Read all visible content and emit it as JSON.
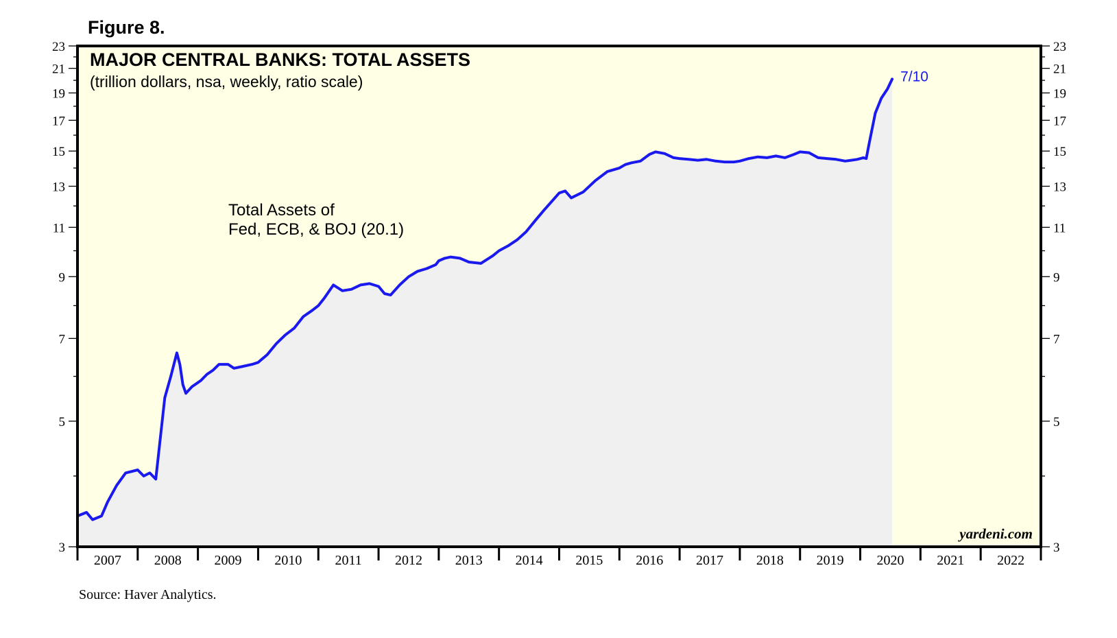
{
  "figure_label": "Figure 8.",
  "source": "Source: Haver Analytics.",
  "brand": "yardeni.com",
  "colors": {
    "plot_bg": "#ffffe6",
    "area_fill": "#f0f0f0",
    "line": "#1a1aee",
    "frame": "#000000"
  },
  "chart_data": {
    "type": "line",
    "title": "MAJOR CENTRAL BANKS: TOTAL ASSETS",
    "subtitle": "(trillion dollars, nsa, weekly, ratio scale)",
    "annotation_lines": [
      "Total Assets of",
      "Fed, ECB, & BOJ (20.1)"
    ],
    "end_label": "7/10",
    "yscale": "log",
    "ylim": [
      3,
      23
    ],
    "xlim": [
      2007.0,
      2023.0
    ],
    "y_ticks": [
      3,
      5,
      7,
      9,
      11,
      13,
      15,
      17,
      19,
      21,
      23
    ],
    "x_tick_labels": [
      "2007",
      "2008",
      "2009",
      "2010",
      "2011",
      "2012",
      "2013",
      "2014",
      "2015",
      "2016",
      "2017",
      "2018",
      "2019",
      "2020",
      "2021",
      "2022"
    ],
    "series": [
      {
        "name": "Total Assets of Fed, ECB, & BOJ",
        "x": [
          2007.0,
          2007.15,
          2007.25,
          2007.4,
          2007.5,
          2007.65,
          2007.8,
          2008.0,
          2008.1,
          2008.2,
          2008.3,
          2008.45,
          2008.55,
          2008.65,
          2008.7,
          2008.75,
          2008.8,
          2008.9,
          2008.95,
          2009.0,
          2009.05,
          2009.15,
          2009.25,
          2009.35,
          2009.5,
          2009.6,
          2009.75,
          2009.9,
          2010.0,
          2010.15,
          2010.3,
          2010.45,
          2010.6,
          2010.75,
          2010.9,
          2011.0,
          2011.1,
          2011.25,
          2011.4,
          2011.55,
          2011.7,
          2011.85,
          2012.0,
          2012.1,
          2012.2,
          2012.35,
          2012.5,
          2012.65,
          2012.8,
          2012.95,
          2013.0,
          2013.1,
          2013.2,
          2013.35,
          2013.5,
          2013.7,
          2013.9,
          2014.0,
          2014.15,
          2014.3,
          2014.45,
          2014.6,
          2014.75,
          2014.9,
          2015.0,
          2015.1,
          2015.2,
          2015.4,
          2015.6,
          2015.8,
          2016.0,
          2016.1,
          2016.2,
          2016.35,
          2016.5,
          2016.6,
          2016.75,
          2016.9,
          2017.0,
          2017.15,
          2017.3,
          2017.45,
          2017.6,
          2017.75,
          2017.9,
          2018.0,
          2018.15,
          2018.3,
          2018.45,
          2018.6,
          2018.75,
          2018.9,
          2019.0,
          2019.15,
          2019.3,
          2019.45,
          2019.6,
          2019.75,
          2019.85,
          2019.95,
          2020.05,
          2020.1,
          2020.15,
          2020.25,
          2020.35,
          2020.45,
          2020.53
        ],
        "values": [
          3.4,
          3.45,
          3.35,
          3.4,
          3.6,
          3.85,
          4.05,
          4.1,
          4.0,
          4.05,
          3.95,
          5.5,
          6.0,
          6.6,
          6.3,
          5.8,
          5.6,
          5.75,
          5.8,
          5.85,
          5.9,
          6.05,
          6.15,
          6.3,
          6.3,
          6.2,
          6.25,
          6.3,
          6.35,
          6.55,
          6.85,
          7.1,
          7.3,
          7.65,
          7.85,
          8.0,
          8.25,
          8.7,
          8.5,
          8.55,
          8.7,
          8.75,
          8.65,
          8.4,
          8.35,
          8.7,
          9.0,
          9.2,
          9.3,
          9.45,
          9.6,
          9.7,
          9.75,
          9.7,
          9.55,
          9.5,
          9.8,
          10.0,
          10.2,
          10.45,
          10.8,
          11.3,
          11.8,
          12.3,
          12.65,
          12.75,
          12.4,
          12.7,
          13.3,
          13.8,
          14.0,
          14.2,
          14.3,
          14.4,
          14.8,
          14.95,
          14.85,
          14.6,
          14.55,
          14.5,
          14.45,
          14.5,
          14.4,
          14.35,
          14.35,
          14.4,
          14.55,
          14.65,
          14.6,
          14.7,
          14.6,
          14.8,
          14.95,
          14.9,
          14.6,
          14.55,
          14.5,
          14.4,
          14.45,
          14.5,
          14.6,
          14.55,
          15.5,
          17.5,
          18.6,
          19.3,
          20.1
        ]
      }
    ]
  }
}
